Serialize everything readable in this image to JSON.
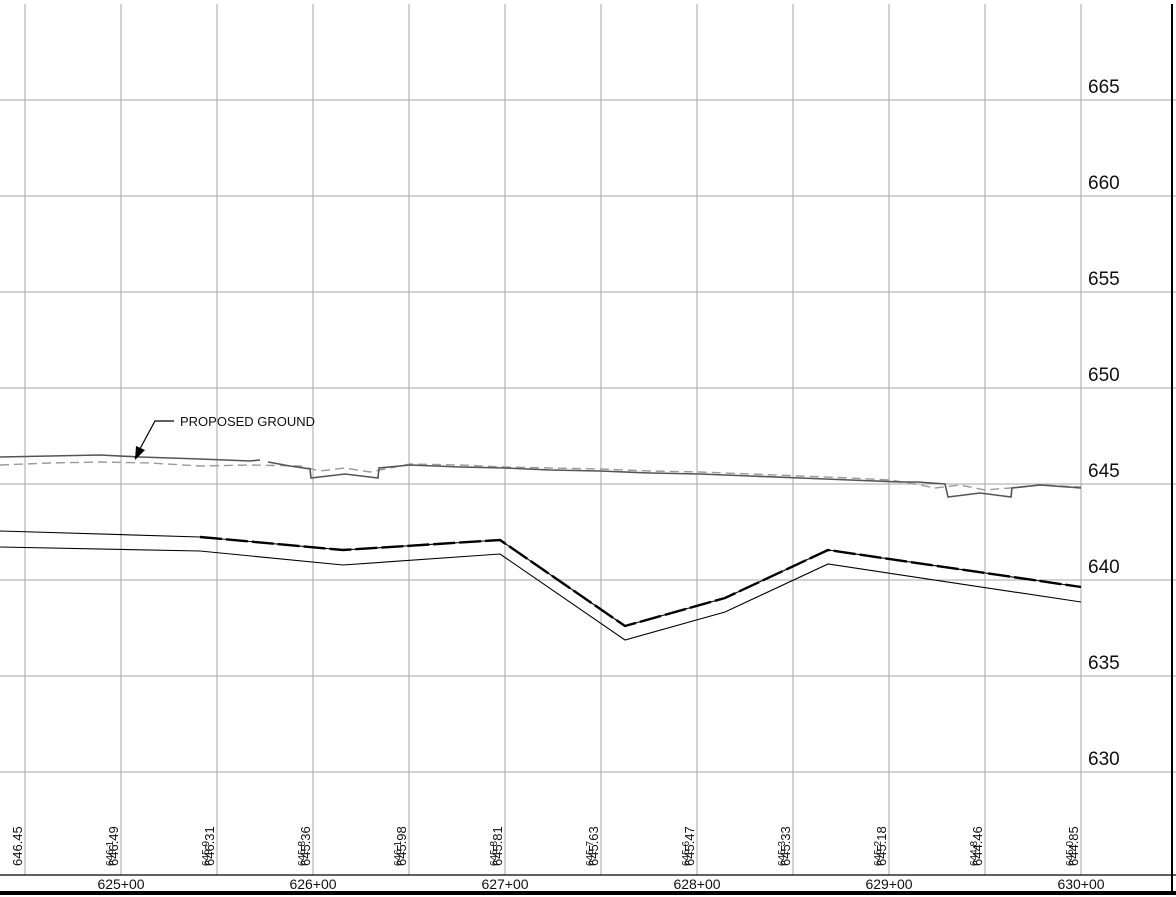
{
  "annotation": {
    "text": "PROPOSED GROUND"
  },
  "elevation_labels": [
    "665",
    "660",
    "655",
    "650",
    "645",
    "640",
    "635",
    "630"
  ],
  "station_labels": [
    "625+00",
    "626+00",
    "627+00",
    "628+00",
    "629+00",
    "630+00"
  ],
  "proposed_values": [
    "646.45",
    "646.49",
    "646.31",
    "645.36",
    "645.98",
    "645.81",
    "645.63",
    "645.47",
    "645.33",
    "645.18",
    "644.46",
    "644.85"
  ],
  "existing_values": [
    "646.1",
    "645.9",
    "645.8",
    "646.1",
    "645.8",
    "645.7",
    "645.6",
    "645.3",
    "645.2",
    "644.8",
    "645.0"
  ],
  "colors": {
    "grid": "#a6a6a6",
    "proposed": "#555555",
    "existing": "#9a9a9a",
    "pipe": "#000000"
  }
}
